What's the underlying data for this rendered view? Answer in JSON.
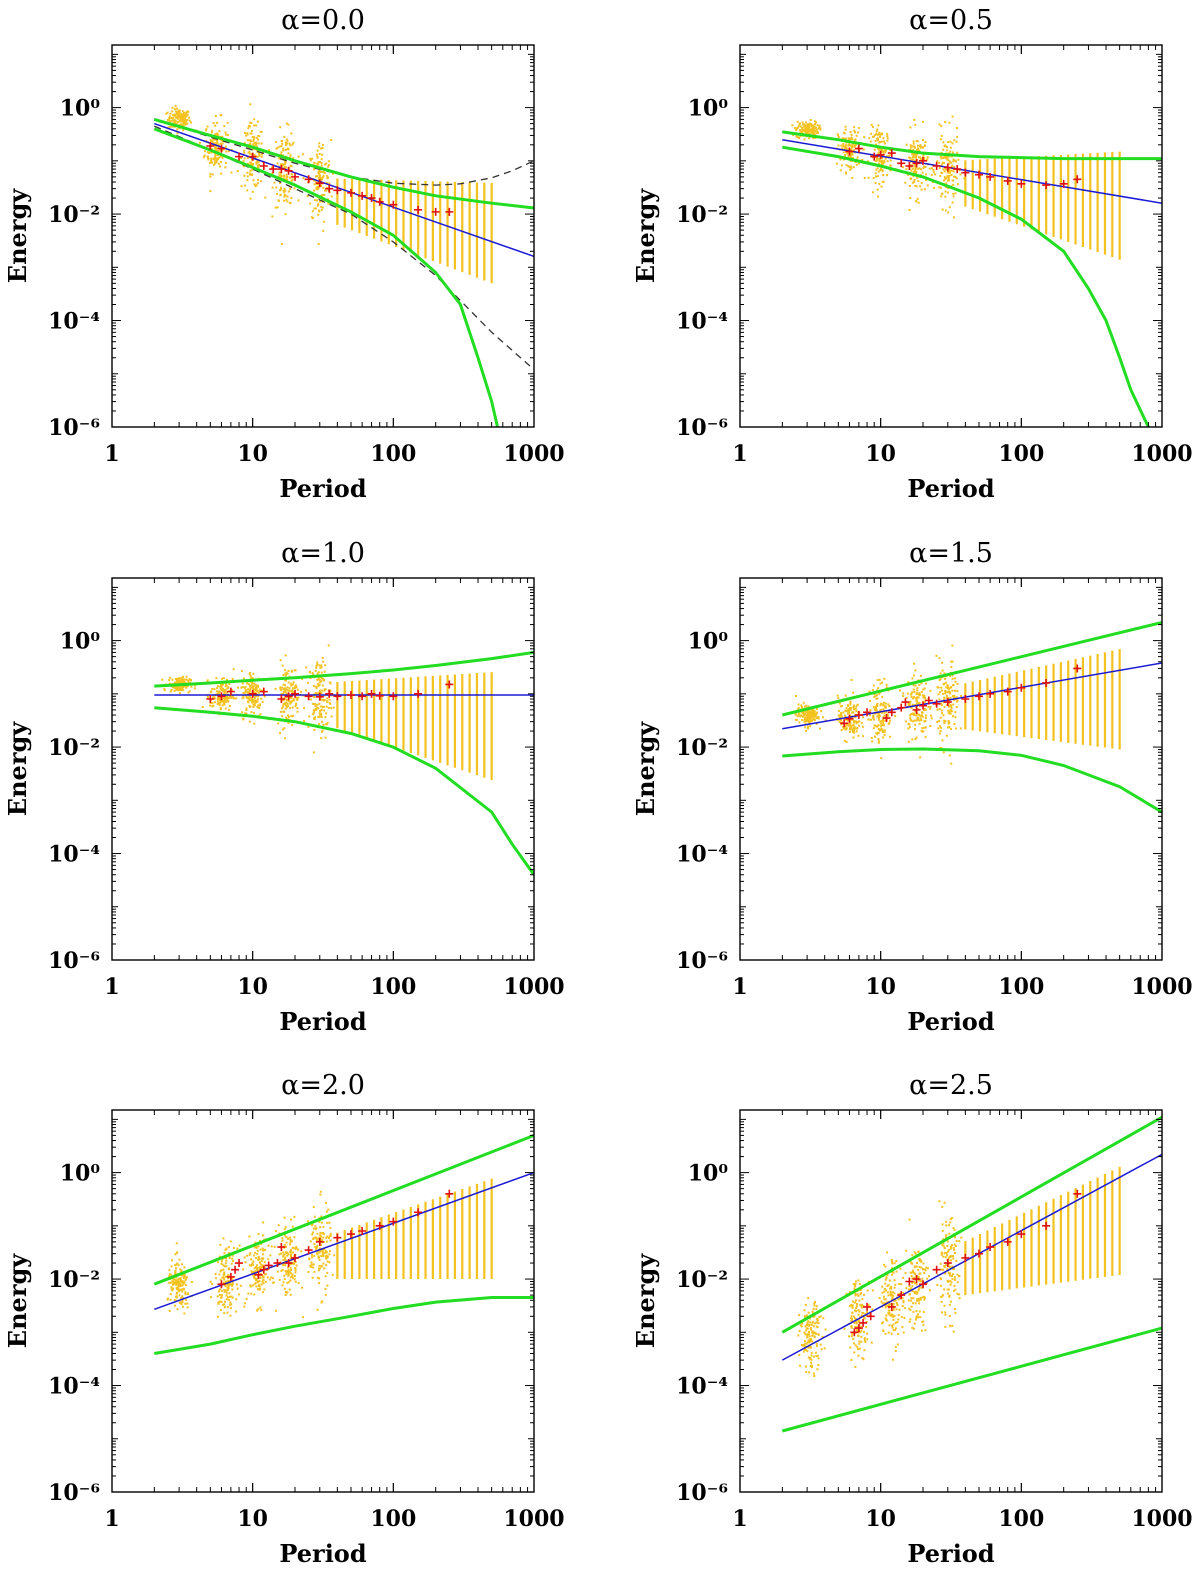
{
  "chart_data": [
    {
      "type": "scatter",
      "title": "α=0.0",
      "alpha": 0.0,
      "xlabel": "Period",
      "ylabel": "Energy",
      "xscale": "log",
      "yscale": "log",
      "xlim": [
        1,
        1000
      ],
      "ylim": [
        1e-06,
        15
      ],
      "xticks": [
        "1",
        "10",
        "100",
        "1000"
      ],
      "yticks": [
        "10⁰",
        "10⁻²",
        "10⁻⁴",
        "10⁻⁶"
      ],
      "blue_fit": {
        "x": [
          2,
          1000
        ],
        "y": [
          0.5,
          0.0016
        ]
      },
      "green_upper": {
        "x": [
          2,
          5,
          10,
          20,
          50,
          100,
          200,
          500,
          1000
        ],
        "y": [
          0.6,
          0.3,
          0.18,
          0.1,
          0.05,
          0.032,
          0.022,
          0.016,
          0.013
        ]
      },
      "green_lower": {
        "x": [
          2,
          5,
          10,
          20,
          50,
          100,
          200,
          300,
          400,
          500,
          550
        ],
        "y": [
          0.4,
          0.16,
          0.075,
          0.035,
          0.011,
          0.004,
          0.0008,
          0.0002,
          2e-05,
          3e-06,
          1e-06
        ]
      },
      "dashed_upper": {
        "x": [
          2,
          5,
          10,
          20,
          50,
          100,
          200,
          300,
          500,
          700,
          1000
        ],
        "y": [
          0.62,
          0.28,
          0.16,
          0.09,
          0.05,
          0.038,
          0.035,
          0.037,
          0.048,
          0.065,
          0.1
        ]
      },
      "dashed_lower": {
        "x": [
          2,
          5,
          10,
          20,
          50,
          100,
          200,
          500,
          1000
        ],
        "y": [
          0.45,
          0.16,
          0.07,
          0.03,
          0.01,
          0.003,
          0.0007,
          6e-05,
          1.2e-05
        ]
      },
      "red_points": {
        "x": [
          5,
          6,
          8,
          10,
          12,
          14,
          16,
          18,
          20,
          25,
          30,
          35,
          40,
          50,
          60,
          70,
          80,
          100,
          150,
          200,
          250
        ],
        "y": [
          0.19,
          0.17,
          0.12,
          0.12,
          0.08,
          0.07,
          0.07,
          0.065,
          0.05,
          0.045,
          0.038,
          0.03,
          0.028,
          0.025,
          0.022,
          0.02,
          0.017,
          0.015,
          0.012,
          0.011,
          0.011
        ]
      },
      "yellow_clusters": [
        [
          3,
          0.6,
          0.1
        ],
        [
          5.5,
          0.19,
          0.25
        ],
        [
          10,
          0.12,
          0.3
        ],
        [
          17,
          0.07,
          0.35
        ],
        [
          30,
          0.038,
          0.4
        ]
      ],
      "yellow_columns": {
        "x_start": 40,
        "x_end": 500,
        "count": 22,
        "center_start": 0.025,
        "center_end": 0.01,
        "spread_start": 0.6,
        "spread_end": 1.3
      }
    },
    {
      "type": "scatter",
      "title": "α=0.5",
      "alpha": 0.5,
      "xlabel": "Period",
      "ylabel": "Energy",
      "xscale": "log",
      "yscale": "log",
      "xlim": [
        1,
        1000
      ],
      "ylim": [
        1e-06,
        15
      ],
      "xticks": [
        "1",
        "10",
        "100",
        "1000"
      ],
      "yticks": [
        "10⁰",
        "10⁻²",
        "10⁻⁴",
        "10⁻⁶"
      ],
      "blue_fit": {
        "x": [
          2,
          1000
        ],
        "y": [
          0.25,
          0.016
        ]
      },
      "green_upper": {
        "x": [
          2,
          5,
          10,
          20,
          50,
          100,
          200,
          500,
          1000
        ],
        "y": [
          0.35,
          0.25,
          0.18,
          0.14,
          0.12,
          0.115,
          0.11,
          0.11,
          0.11
        ]
      },
      "green_lower": {
        "x": [
          2,
          5,
          10,
          20,
          50,
          100,
          200,
          300,
          400,
          500,
          600,
          800
        ],
        "y": [
          0.18,
          0.12,
          0.08,
          0.05,
          0.02,
          0.008,
          0.002,
          0.0004,
          0.0001,
          2e-05,
          5e-06,
          1e-06
        ]
      },
      "red_points": {
        "x": [
          6,
          7,
          9,
          10,
          12,
          14,
          16,
          18,
          20,
          25,
          30,
          35,
          40,
          50,
          60,
          80,
          100,
          150,
          200,
          250
        ],
        "y": [
          0.15,
          0.17,
          0.12,
          0.13,
          0.14,
          0.09,
          0.08,
          0.09,
          0.1,
          0.08,
          0.075,
          0.07,
          0.06,
          0.055,
          0.05,
          0.042,
          0.037,
          0.035,
          0.037,
          0.045
        ]
      },
      "yellow_clusters": [
        [
          3,
          0.38,
          0.08
        ],
        [
          6,
          0.16,
          0.2
        ],
        [
          10,
          0.13,
          0.25
        ],
        [
          18,
          0.09,
          0.3
        ],
        [
          30,
          0.065,
          0.35
        ]
      ],
      "yellow_columns": {
        "x_start": 40,
        "x_end": 500,
        "count": 22,
        "center_start": 0.055,
        "center_end": 0.035,
        "spread_start": 0.6,
        "spread_end": 1.4
      }
    },
    {
      "type": "scatter",
      "title": "α=1.0",
      "alpha": 1.0,
      "xlabel": "Period",
      "ylabel": "Energy",
      "xscale": "log",
      "yscale": "log",
      "xlim": [
        1,
        1000
      ],
      "ylim": [
        1e-06,
        15
      ],
      "xticks": [
        "1",
        "10",
        "100",
        "1000"
      ],
      "yticks": [
        "10⁰",
        "10⁻²",
        "10⁻⁴",
        "10⁻⁶"
      ],
      "blue_fit": {
        "x": [
          2,
          1000
        ],
        "y": [
          0.095,
          0.095
        ]
      },
      "green_upper": {
        "x": [
          2,
          5,
          10,
          20,
          50,
          100,
          200,
          500,
          1000
        ],
        "y": [
          0.14,
          0.16,
          0.18,
          0.2,
          0.24,
          0.28,
          0.34,
          0.46,
          0.6
        ]
      },
      "green_lower": {
        "x": [
          2,
          5,
          10,
          20,
          50,
          100,
          200,
          500,
          700,
          1000
        ],
        "y": [
          0.055,
          0.045,
          0.038,
          0.03,
          0.018,
          0.01,
          0.004,
          0.0006,
          0.00015,
          4e-05
        ]
      },
      "red_points": {
        "x": [
          5,
          6,
          7,
          10,
          12,
          16,
          18,
          20,
          25,
          30,
          35,
          40,
          50,
          60,
          70,
          80,
          100,
          150,
          250
        ],
        "y": [
          0.08,
          0.09,
          0.11,
          0.1,
          0.11,
          0.08,
          0.09,
          0.1,
          0.09,
          0.088,
          0.1,
          0.09,
          0.095,
          0.09,
          0.1,
          0.092,
          0.09,
          0.1,
          0.15
        ]
      },
      "yellow_clusters": [
        [
          3,
          0.15,
          0.07
        ],
        [
          6,
          0.095,
          0.15
        ],
        [
          10,
          0.1,
          0.22
        ],
        [
          18,
          0.095,
          0.3
        ],
        [
          30,
          0.09,
          0.35
        ]
      ],
      "yellow_columns": {
        "x_start": 40,
        "x_end": 500,
        "count": 22,
        "center_start": 0.09,
        "center_end": 0.06,
        "spread_start": 0.6,
        "spread_end": 1.4
      }
    },
    {
      "type": "scatter",
      "title": "α=1.5",
      "alpha": 1.5,
      "xlabel": "Period",
      "ylabel": "Energy",
      "xscale": "log",
      "yscale": "log",
      "xlim": [
        1,
        1000
      ],
      "ylim": [
        1e-06,
        15
      ],
      "xticks": [
        "1",
        "10",
        "100",
        "1000"
      ],
      "yticks": [
        "10⁰",
        "10⁻²",
        "10⁻⁴",
        "10⁻⁶"
      ],
      "blue_fit": {
        "x": [
          2,
          1000
        ],
        "y": [
          0.022,
          0.38
        ]
      },
      "green_upper": {
        "x": [
          2,
          1000
        ],
        "y": [
          0.04,
          2.2
        ]
      },
      "green_lower": {
        "x": [
          2,
          5,
          10,
          20,
          50,
          100,
          200,
          500,
          1000
        ],
        "y": [
          0.0068,
          0.0082,
          0.009,
          0.0092,
          0.0085,
          0.007,
          0.0045,
          0.0018,
          0.0006
        ]
      },
      "red_points": {
        "x": [
          5.5,
          6,
          7,
          8,
          11,
          12,
          14,
          15,
          18,
          20,
          22,
          25,
          30,
          40,
          50,
          60,
          80,
          100,
          150,
          250
        ],
        "y": [
          0.028,
          0.034,
          0.04,
          0.045,
          0.035,
          0.045,
          0.055,
          0.07,
          0.05,
          0.06,
          0.075,
          0.065,
          0.07,
          0.08,
          0.09,
          0.1,
          0.11,
          0.13,
          0.16,
          0.3
        ]
      },
      "yellow_clusters": [
        [
          3,
          0.04,
          0.1
        ],
        [
          6,
          0.035,
          0.2
        ],
        [
          10,
          0.045,
          0.28
        ],
        [
          18,
          0.06,
          0.32
        ],
        [
          30,
          0.075,
          0.38
        ]
      ],
      "yellow_columns": {
        "x_start": 40,
        "x_end": 500,
        "count": 22,
        "center_start": 0.085,
        "center_end": 0.18,
        "spread_start": 0.6,
        "spread_end": 1.3
      }
    },
    {
      "type": "scatter",
      "title": "α=2.0",
      "alpha": 2.0,
      "xlabel": "Period",
      "ylabel": "Energy",
      "xscale": "log",
      "yscale": "log",
      "xlim": [
        1,
        1000
      ],
      "ylim": [
        1e-06,
        15
      ],
      "xticks": [
        "1",
        "10",
        "100",
        "1000"
      ],
      "yticks": [
        "10⁰",
        "10⁻²",
        "10⁻⁴",
        "10⁻⁶"
      ],
      "blue_fit": {
        "x": [
          2,
          1000
        ],
        "y": [
          0.0027,
          1.0
        ]
      },
      "green_upper": {
        "x": [
          2,
          1000
        ],
        "y": [
          0.008,
          5
        ]
      },
      "green_lower": {
        "x": [
          2,
          5,
          10,
          20,
          50,
          100,
          200,
          500,
          1000
        ],
        "y": [
          0.0004,
          0.0006,
          0.0009,
          0.0013,
          0.002,
          0.0028,
          0.0037,
          0.0045,
          0.0045
        ]
      },
      "red_points": {
        "x": [
          6,
          7,
          7.5,
          8,
          11,
          12,
          13,
          15,
          16,
          18,
          20,
          25,
          30,
          40,
          50,
          60,
          80,
          100,
          150,
          250
        ],
        "y": [
          0.008,
          0.011,
          0.015,
          0.02,
          0.012,
          0.015,
          0.018,
          0.02,
          0.04,
          0.02,
          0.025,
          0.035,
          0.05,
          0.06,
          0.07,
          0.08,
          0.1,
          0.12,
          0.18,
          0.4
        ]
      },
      "yellow_clusters": [
        [
          3,
          0.007,
          0.25
        ],
        [
          6.5,
          0.01,
          0.3
        ],
        [
          11,
          0.015,
          0.32
        ],
        [
          18,
          0.022,
          0.35
        ],
        [
          30,
          0.035,
          0.4
        ]
      ],
      "yellow_columns": {
        "x_start": 40,
        "x_end": 500,
        "count": 22,
        "center_start": 0.04,
        "center_end": 0.2,
        "spread_start": 0.6,
        "spread_end": 1.3
      }
    },
    {
      "type": "scatter",
      "title": "α=2.5",
      "alpha": 2.5,
      "xlabel": "Period",
      "ylabel": "Energy",
      "xscale": "log",
      "yscale": "log",
      "xlim": [
        1,
        1000
      ],
      "ylim": [
        1e-06,
        15
      ],
      "xticks": [
        "1",
        "10",
        "100",
        "1000"
      ],
      "yticks": [
        "10⁰",
        "10⁻²",
        "10⁻⁴",
        "10⁻⁶"
      ],
      "blue_fit": {
        "x": [
          2,
          1000
        ],
        "y": [
          0.0003,
          2.2
        ]
      },
      "green_upper": {
        "x": [
          2,
          1000
        ],
        "y": [
          0.001,
          11
        ]
      },
      "green_lower": {
        "x": [
          2,
          1000
        ],
        "y": [
          1.4e-05,
          0.0012
        ]
      },
      "red_points": {
        "x": [
          6.5,
          7,
          7.5,
          8,
          8.5,
          12,
          14,
          16,
          18,
          20,
          25,
          30,
          40,
          50,
          60,
          80,
          100,
          150,
          250
        ],
        "y": [
          0.001,
          0.0012,
          0.0015,
          0.003,
          0.002,
          0.003,
          0.005,
          0.009,
          0.01,
          0.008,
          0.015,
          0.02,
          0.025,
          0.03,
          0.04,
          0.05,
          0.07,
          0.1,
          0.4
        ]
      },
      "yellow_clusters": [
        [
          3.2,
          0.0008,
          0.3
        ],
        [
          7,
          0.002,
          0.35
        ],
        [
          12,
          0.004,
          0.38
        ],
        [
          18,
          0.008,
          0.4
        ],
        [
          30,
          0.015,
          0.45
        ]
      ],
      "yellow_columns": {
        "x_start": 40,
        "x_end": 500,
        "count": 22,
        "center_start": 0.025,
        "center_end": 0.3,
        "spread_start": 0.7,
        "spread_end": 1.4
      }
    }
  ]
}
